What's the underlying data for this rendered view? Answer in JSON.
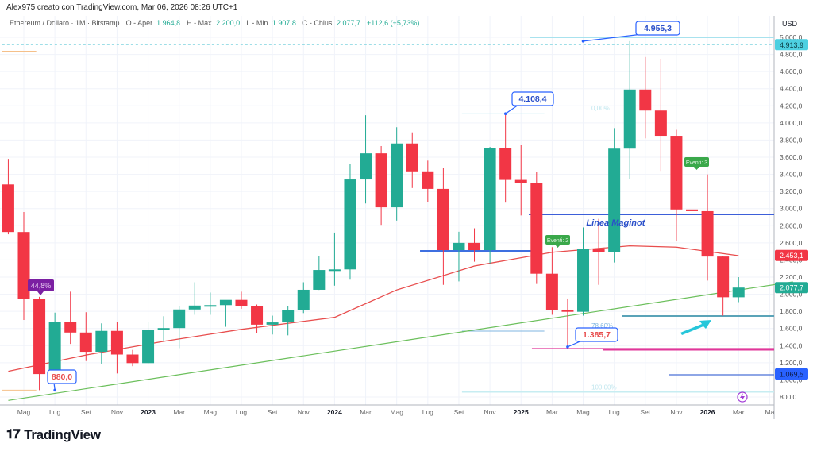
{
  "header": {
    "credit": "Alex975 creato con TradingView.com, Mar 06, 2026 08:26 UTC+1",
    "symbol": "Ethereum / Dollaro · 1M · Bitstamp",
    "open_label": "O - Aper.",
    "open": "1.964,8",
    "high_label": "H - Max.",
    "high": "2.200,0",
    "low_label": "L - Min.",
    "low": "1.907,8",
    "close_label": "C - Chius.",
    "close": "2.077,7",
    "change": "+112,6 (+5,73%)"
  },
  "logo": "TradingView",
  "chart_data": {
    "type": "candlestick",
    "title": "Ethereum / Dollaro · 1M · Bitstamp",
    "currency": "USD",
    "ylim": [
      720,
      5200
    ],
    "first_month_index": 3,
    "month_index_note": "0 = Jan 2022",
    "ohlc": [
      [
        3282,
        3580,
        2700,
        2727
      ],
      [
        2727,
        2960,
        1700,
        1942
      ],
      [
        1942,
        1970,
        880,
        1068
      ],
      [
        1068,
        1785,
        1000,
        1680
      ],
      [
        1680,
        2030,
        1420,
        1553
      ],
      [
        1553,
        1790,
        1220,
        1328
      ],
      [
        1328,
        1660,
        1190,
        1572
      ],
      [
        1572,
        1680,
        1075,
        1296
      ],
      [
        1296,
        1350,
        1160,
        1196
      ],
      [
        1196,
        1680,
        1190,
        1585
      ],
      [
        1585,
        1743,
        1460,
        1605
      ],
      [
        1605,
        1860,
        1370,
        1822
      ],
      [
        1822,
        2140,
        1760,
        1868
      ],
      [
        1868,
        2020,
        1760,
        1873
      ],
      [
        1873,
        1930,
        1620,
        1934
      ],
      [
        1934,
        2030,
        1830,
        1857
      ],
      [
        1857,
        1880,
        1550,
        1645
      ],
      [
        1645,
        1750,
        1530,
        1671
      ],
      [
        1671,
        1865,
        1520,
        1815
      ],
      [
        1815,
        2140,
        1780,
        2052
      ],
      [
        2052,
        2445,
        2050,
        2283
      ],
      [
        2283,
        2720,
        2100,
        2290
      ],
      [
        2290,
        3520,
        2170,
        3340
      ],
      [
        3340,
        4090,
        3060,
        3645
      ],
      [
        3645,
        3730,
        2810,
        3015
      ],
      [
        3015,
        3950,
        2860,
        3760
      ],
      [
        3760,
        3890,
        3240,
        3435
      ],
      [
        3435,
        3560,
        3080,
        3230
      ],
      [
        3230,
        3480,
        2110,
        2515
      ],
      [
        2515,
        2730,
        2150,
        2600
      ],
      [
        2600,
        2770,
        2380,
        2515
      ],
      [
        2515,
        3720,
        2360,
        3705
      ],
      [
        3705,
        4108,
        3070,
        3335
      ],
      [
        3335,
        3740,
        2920,
        3300
      ],
      [
        3300,
        3430,
        2120,
        2240
      ],
      [
        2240,
        2550,
        1760,
        1820
      ],
      [
        1820,
        1950,
        1386,
        1795
      ],
      [
        1795,
        2780,
        1750,
        2530
      ],
      [
        2530,
        2880,
        2110,
        2490
      ],
      [
        2490,
        3940,
        2370,
        3700
      ],
      [
        3700,
        4955,
        3350,
        4390
      ],
      [
        4390,
        4770,
        3820,
        4145
      ],
      [
        4145,
        4750,
        3440,
        3850
      ],
      [
        3850,
        3920,
        2620,
        2990
      ],
      [
        2990,
        3440,
        2780,
        2970
      ],
      [
        2970,
        3400,
        2160,
        2440
      ],
      [
        2440,
        2450,
        1750,
        1965
      ],
      [
        1964.8,
        2200,
        1907.8,
        2077.7
      ]
    ],
    "moving_average": [
      [
        3,
        1100
      ],
      [
        8,
        1290
      ],
      [
        13,
        1450
      ],
      [
        18,
        1590
      ],
      [
        24,
        1730
      ],
      [
        28,
        2050
      ],
      [
        33,
        2330
      ],
      [
        38,
        2490
      ],
      [
        43,
        2565
      ],
      [
        46,
        2550
      ],
      [
        50,
        2450
      ]
    ],
    "trendline": [
      [
        3,
        760
      ],
      [
        53.5,
        2145
      ]
    ],
    "x_ticks": [
      {
        "m": 4,
        "label": "Mag"
      },
      {
        "m": 6,
        "label": "Lug"
      },
      {
        "m": 8,
        "label": "Set"
      },
      {
        "m": 10,
        "label": "Nov"
      },
      {
        "m": 12,
        "label": "2023",
        "bold": true
      },
      {
        "m": 14,
        "label": "Mar"
      },
      {
        "m": 16,
        "label": "Mag"
      },
      {
        "m": 18,
        "label": "Lug"
      },
      {
        "m": 20,
        "label": "Set"
      },
      {
        "m": 22,
        "label": "Nov"
      },
      {
        "m": 24,
        "label": "2024",
        "bold": true
      },
      {
        "m": 26,
        "label": "Mar"
      },
      {
        "m": 28,
        "label": "Mag"
      },
      {
        "m": 30,
        "label": "Lug"
      },
      {
        "m": 32,
        "label": "Set"
      },
      {
        "m": 34,
        "label": "Nov"
      },
      {
        "m": 36,
        "label": "2025",
        "bold": true
      },
      {
        "m": 38,
        "label": "Mar"
      },
      {
        "m": 40,
        "label": "Mag"
      },
      {
        "m": 42,
        "label": "Lug"
      },
      {
        "m": 44,
        "label": "Set"
      },
      {
        "m": 46,
        "label": "Nov"
      },
      {
        "m": 48,
        "label": "2026",
        "bold": true
      },
      {
        "m": 50,
        "label": "Mar"
      },
      {
        "m": 52,
        "label": "Ma"
      }
    ],
    "y_ticks": [
      {
        "v": 5000,
        "label": "5.000,0"
      },
      {
        "v": 4800,
        "label": "4.800,0"
      },
      {
        "v": 4600,
        "label": "4.600,0"
      },
      {
        "v": 4400,
        "label": "4.400,0"
      },
      {
        "v": 4200,
        "label": "4.200,0"
      },
      {
        "v": 4000,
        "label": "4.000,0"
      },
      {
        "v": 3800,
        "label": "3.800,0"
      },
      {
        "v": 3600,
        "label": "3.600,0"
      },
      {
        "v": 3400,
        "label": "3.400,0"
      },
      {
        "v": 3200,
        "label": "3.200,0"
      },
      {
        "v": 3000,
        "label": "3.000,0"
      },
      {
        "v": 2800,
        "label": "2.800,0"
      },
      {
        "v": 2600,
        "label": "2.600,0"
      },
      {
        "v": 2400,
        "label": "2.400,0"
      },
      {
        "v": 2200,
        "label": "2.200,0"
      },
      {
        "v": 2000,
        "label": "2.000,0"
      },
      {
        "v": 1800,
        "label": "1.800,0"
      },
      {
        "v": 1600,
        "label": "1.600,0"
      },
      {
        "v": 1400,
        "label": "1.400,0"
      },
      {
        "v": 1200,
        "label": "1.200,0"
      },
      {
        "v": 1000,
        "label": "1.000,0"
      },
      {
        "v": 800,
        "label": "800,0"
      }
    ],
    "price_tags": [
      {
        "v": 4913.9,
        "label": "4.913,9",
        "color": "#4dd0e1",
        "text": "#0b3a40"
      },
      {
        "v": 2453.1,
        "label": "2.453,1",
        "color": "#f23645",
        "text": "#ffffff"
      },
      {
        "v": 2077.7,
        "label": "2.077,7",
        "color": "#22ab94",
        "text": "#ffffff"
      },
      {
        "v": 1069.5,
        "label": "1.069,5",
        "color": "#2962ff",
        "text": "#0d1b4a"
      }
    ],
    "hlines": [
      {
        "v": 2933,
        "m0": 36.5,
        "m1": null,
        "color": "#3d5fd9",
        "width": 2,
        "name": "maginot-line"
      },
      {
        "v": 2506,
        "m0": 29.5,
        "m1": 37.3,
        "color": "#3d6fe0",
        "width": 2,
        "name": "support-line-2500"
      },
      {
        "v": 2575,
        "m0": 50,
        "m1": null,
        "color": "#b05cc8",
        "width": 1,
        "dash": "5,4",
        "name": "resistance-dashed"
      },
      {
        "v": 1746,
        "m0": 42.5,
        "m1": null,
        "color": "#5aa3b8",
        "width": 2,
        "name": "support-line-1750"
      },
      {
        "v": 1365,
        "m0": 36.7,
        "m1": null,
        "color": "#e0379a",
        "width": 1.5,
        "name": "support-line-1385"
      },
      {
        "v": 1350,
        "m0": 41.3,
        "m1": null,
        "color": "#e0379a",
        "width": 1.5,
        "name": "support-line-1350"
      },
      {
        "v": 1060,
        "m0": 45.5,
        "m1": null,
        "color": "#4a72d8",
        "width": 1.2,
        "name": "support-line-1060"
      },
      {
        "v": 5000,
        "m0": 36.6,
        "m1": null,
        "color": "#a8e2ee",
        "width": 2,
        "name": "high-line"
      },
      {
        "v": 4913.9,
        "m0": 2,
        "m1": null,
        "color": "#7fd4df",
        "width": 1,
        "dash": "3,3",
        "name": "high-dashed-line"
      },
      {
        "v": 4108,
        "m0": 32.2,
        "m1": 37.5,
        "color": "#c7edf2",
        "width": 1,
        "name": "fib-0-line"
      },
      {
        "v": 1570,
        "m0": 32.2,
        "m1": 37.5,
        "color": "#7fb6e0",
        "width": 1,
        "name": "fib-786-line"
      },
      {
        "v": 860,
        "m0": 32.2,
        "m1": null,
        "color": "#c7edf2",
        "width": 2,
        "name": "fib-100-line"
      },
      {
        "v": 4835,
        "m0": 2.6,
        "m1": 4.8,
        "color": "#f5c08a",
        "width": 1.5,
        "name": "orange-line-top"
      },
      {
        "v": 880,
        "m0": 2.6,
        "m1": 4.8,
        "color": "#f5c08a",
        "width": 1,
        "name": "orange-line-bottom"
      }
    ],
    "annotations": {
      "maginot": "Linea Maginot",
      "fib0": "0,00%",
      "fib786": "78,60%",
      "fib100": "100,00%",
      "callout_high": "4.955,3",
      "callout_dec24": "4.108,4",
      "callout_apr25": "1.385,7",
      "callout_jun22": "880,0",
      "drop_pct": "44,8%",
      "events_2": "Eventi: 2",
      "events_3": "Eventi: 3"
    },
    "colors": {
      "up": "#22ab94",
      "down": "#f23645",
      "ma": "#e84d4d",
      "trend": "#6bbf5b",
      "grid": "#f0f3fa"
    }
  }
}
